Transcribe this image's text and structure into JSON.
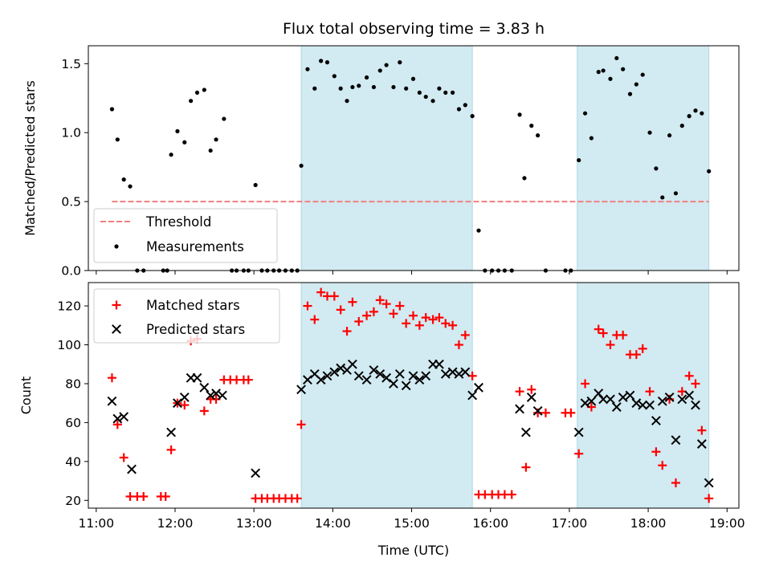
{
  "chart_data": [
    {
      "type": "scatter",
      "title": "Flux total observing time = 3.83 h",
      "xlabel": "",
      "ylabel": "Matched/Predicted stars",
      "xlim": [
        10.9,
        19.15
      ],
      "ylim": [
        0,
        1.63
      ],
      "xticks": [
        11,
        12,
        13,
        14,
        15,
        16,
        17,
        18,
        19
      ],
      "xticklabels": [
        "",
        "",
        "",
        "",
        "",
        "",
        "",
        "",
        ""
      ],
      "yticks": [
        0,
        0.5,
        1.0,
        1.5
      ],
      "yticklabels": [
        "0.0",
        "0.5",
        "1.0",
        "1.5"
      ],
      "shaded_intervals": [
        [
          13.6,
          15.77
        ],
        [
          17.1,
          18.77
        ]
      ],
      "shade_color": "#d2eaf1",
      "threshold": {
        "name": "Threshold",
        "value": 0.5,
        "x_range": [
          11.2,
          18.77
        ],
        "color": "#f08080"
      },
      "legend": {
        "position": "lower-left",
        "entries": [
          "Threshold",
          "Measurements"
        ]
      },
      "series": [
        {
          "name": "Measurements",
          "color": "#000000",
          "x": [
            11.2,
            11.27,
            11.35,
            11.43,
            11.52,
            11.6,
            11.85,
            11.9,
            11.95,
            12.03,
            12.12,
            12.2,
            12.28,
            12.37,
            12.45,
            12.52,
            12.62,
            12.72,
            12.78,
            12.87,
            12.93,
            13.02,
            13.1,
            13.17,
            13.25,
            13.32,
            13.4,
            13.48,
            13.55,
            13.6,
            13.68,
            13.77,
            13.85,
            13.93,
            14.02,
            14.1,
            14.18,
            14.25,
            14.33,
            14.43,
            14.52,
            14.6,
            14.68,
            14.77,
            14.85,
            14.93,
            15.02,
            15.1,
            15.18,
            15.27,
            15.35,
            15.43,
            15.52,
            15.6,
            15.68,
            15.77,
            15.85,
            15.93,
            16.02,
            16.1,
            16.18,
            16.27,
            16.37,
            16.43,
            16.52,
            16.6,
            16.7,
            16.95,
            17.02,
            17.12,
            17.2,
            17.28,
            17.37,
            17.43,
            17.52,
            17.6,
            17.68,
            17.77,
            17.85,
            17.93,
            18.02,
            18.1,
            18.18,
            18.27,
            18.35,
            18.43,
            18.52,
            18.6,
            18.68,
            18.77
          ],
          "y": [
            1.17,
            0.95,
            0.66,
            0.61,
            0.0,
            0.0,
            0.0,
            0.0,
            0.84,
            1.01,
            0.93,
            1.23,
            1.29,
            1.31,
            0.87,
            0.95,
            1.1,
            0.0,
            0.0,
            0.0,
            0.0,
            0.62,
            0.0,
            0.0,
            0.0,
            0.0,
            0.0,
            0.0,
            0.0,
            0.76,
            1.46,
            1.32,
            1.52,
            1.51,
            1.41,
            1.32,
            1.23,
            1.33,
            1.34,
            1.4,
            1.33,
            1.45,
            1.49,
            1.33,
            1.51,
            1.32,
            1.39,
            1.29,
            1.26,
            1.23,
            1.32,
            1.29,
            1.29,
            1.17,
            1.2,
            1.12,
            0.29,
            0.0,
            0.0,
            0.0,
            0.0,
            0.0,
            1.13,
            0.67,
            1.05,
            0.98,
            0.0,
            0.0,
            0.0,
            0.8,
            1.14,
            0.96,
            1.44,
            1.45,
            1.39,
            1.54,
            1.46,
            1.28,
            1.35,
            1.42,
            1.0,
            0.74,
            0.53,
            0.98,
            0.56,
            1.05,
            1.12,
            1.16,
            1.14,
            0.72
          ]
        }
      ]
    },
    {
      "type": "scatter",
      "title": "",
      "xlabel": "Time (UTC)",
      "ylabel": "Count",
      "xlim": [
        10.9,
        19.15
      ],
      "ylim": [
        16,
        132
      ],
      "xticks": [
        11,
        12,
        13,
        14,
        15,
        16,
        17,
        18,
        19
      ],
      "xticklabels": [
        "11:00",
        "12:00",
        "13:00",
        "14:00",
        "15:00",
        "16:00",
        "17:00",
        "18:00",
        "19:00"
      ],
      "yticks": [
        20,
        40,
        60,
        80,
        100,
        120
      ],
      "yticklabels": [
        "20",
        "40",
        "60",
        "80",
        "100",
        "120"
      ],
      "shaded_intervals": [
        [
          13.6,
          15.77
        ],
        [
          17.1,
          18.77
        ]
      ],
      "shade_color": "#d2eaf1",
      "legend": {
        "position": "upper-left",
        "entries": [
          "Matched stars",
          "Predicted stars"
        ]
      },
      "series": [
        {
          "name": "Matched stars",
          "marker": "plus",
          "color": "#ff0000",
          "x": [
            11.2,
            11.27,
            11.35,
            11.43,
            11.52,
            11.6,
            11.82,
            11.88,
            11.95,
            12.03,
            12.12,
            12.2,
            12.28,
            12.37,
            12.45,
            12.52,
            12.62,
            12.7,
            12.78,
            12.87,
            12.93,
            13.02,
            13.1,
            13.17,
            13.25,
            13.32,
            13.4,
            13.48,
            13.55,
            13.6,
            13.68,
            13.77,
            13.85,
            13.93,
            14.02,
            14.1,
            14.18,
            14.25,
            14.33,
            14.43,
            14.52,
            14.6,
            14.68,
            14.77,
            14.85,
            14.93,
            15.02,
            15.1,
            15.18,
            15.27,
            15.35,
            15.43,
            15.52,
            15.6,
            15.68,
            15.77,
            15.85,
            15.93,
            16.02,
            16.1,
            16.18,
            16.27,
            16.37,
            16.45,
            16.52,
            16.6,
            16.7,
            16.95,
            17.02,
            17.12,
            17.2,
            17.28,
            17.37,
            17.43,
            17.52,
            17.6,
            17.68,
            17.77,
            17.85,
            17.93,
            18.02,
            18.1,
            18.18,
            18.27,
            18.35,
            18.43,
            18.52,
            18.6,
            18.68,
            18.77
          ],
          "y": [
            83,
            59,
            42,
            22,
            22,
            22,
            22,
            22,
            46,
            70,
            69,
            102,
            103,
            66,
            72,
            72,
            82,
            82,
            82,
            82,
            82,
            21,
            21,
            21,
            21,
            21,
            21,
            21,
            21,
            59,
            120,
            113,
            127,
            125,
            125,
            118,
            107,
            122,
            112,
            115,
            117,
            123,
            121,
            116,
            120,
            111,
            115,
            110,
            114,
            113,
            114,
            111,
            110,
            100,
            105,
            84,
            23,
            23,
            23,
            23,
            23,
            23,
            76,
            37,
            77,
            65,
            65,
            65,
            65,
            44,
            80,
            68,
            108,
            106,
            100,
            105,
            105,
            95,
            95,
            98,
            76,
            45,
            38,
            72,
            29,
            76,
            84,
            80,
            56,
            21
          ]
        },
        {
          "name": "Predicted stars",
          "marker": "x",
          "color": "#000000",
          "x": [
            11.2,
            11.27,
            11.35,
            11.45,
            11.95,
            12.03,
            12.12,
            12.2,
            12.28,
            12.37,
            12.45,
            12.52,
            12.6,
            13.02,
            13.6,
            13.68,
            13.77,
            13.85,
            13.93,
            14.02,
            14.1,
            14.18,
            14.25,
            14.33,
            14.43,
            14.52,
            14.6,
            14.68,
            14.77,
            14.85,
            14.93,
            15.02,
            15.1,
            15.18,
            15.27,
            15.35,
            15.43,
            15.52,
            15.6,
            15.68,
            15.77,
            15.85,
            16.37,
            16.45,
            16.52,
            16.6,
            17.12,
            17.2,
            17.28,
            17.37,
            17.43,
            17.52,
            17.6,
            17.68,
            17.77,
            17.85,
            17.93,
            18.02,
            18.1,
            18.18,
            18.27,
            18.35,
            18.43,
            18.52,
            18.6,
            18.68,
            18.77
          ],
          "y": [
            71,
            62,
            63,
            36,
            55,
            70,
            73,
            83,
            83,
            78,
            74,
            75,
            74,
            34,
            77,
            82,
            85,
            82,
            84,
            86,
            88,
            87,
            90,
            84,
            82,
            87,
            85,
            83,
            80,
            85,
            79,
            84,
            82,
            84,
            90,
            90,
            85,
            86,
            85,
            86,
            74,
            78,
            67,
            55,
            73,
            66,
            55,
            70,
            71,
            75,
            72,
            72,
            68,
            73,
            74,
            70,
            69,
            69,
            61,
            71,
            73,
            51,
            72,
            74,
            69,
            49,
            29
          ]
        }
      ]
    }
  ]
}
